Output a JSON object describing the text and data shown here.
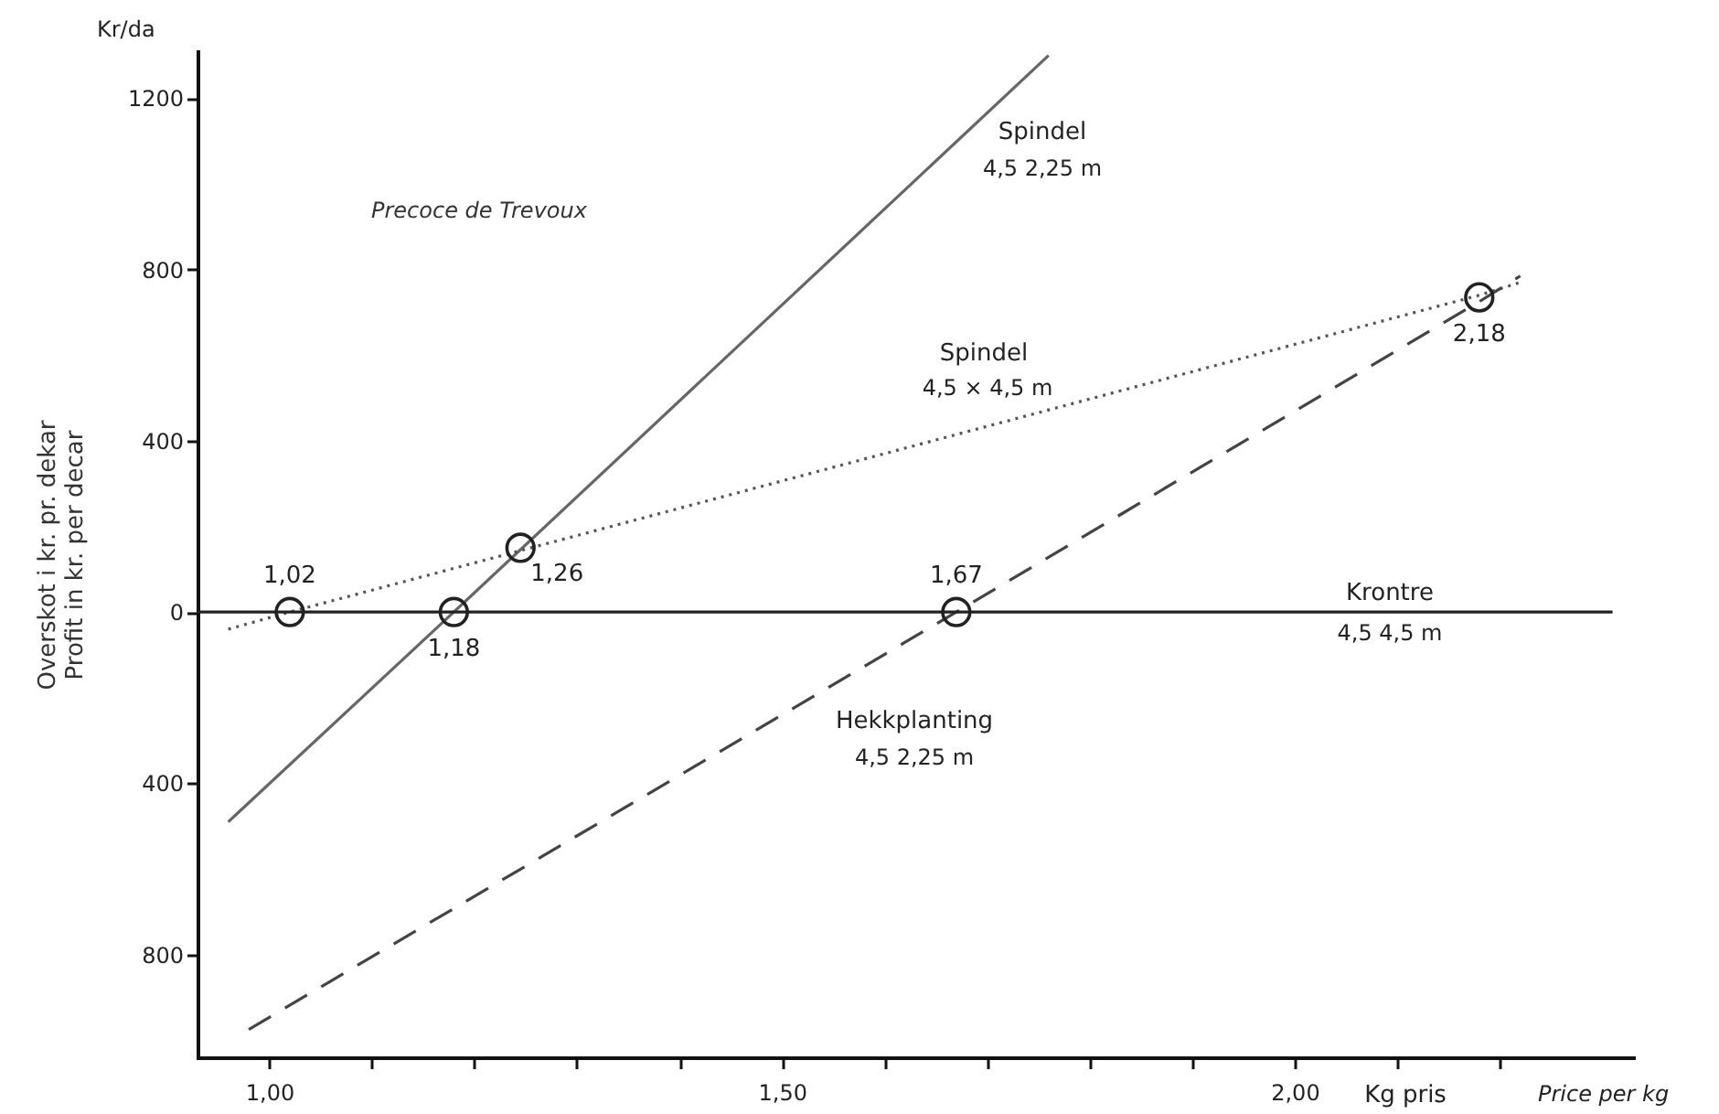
{
  "chart_data": {
    "type": "line",
    "title": "Precoce de Trevoux",
    "xlabel": "Kg pris",
    "ylabel": "Overskot i kr. pr. dekar\nProfit in kr. per decar",
    "xlim": [
      0.93,
      2.33
    ],
    "ylim": [
      -1040,
      1310
    ],
    "xticks": [
      {
        "value": 1.0,
        "label": "1,00"
      },
      {
        "value": 1.1,
        "label": null
      },
      {
        "value": 1.2,
        "label": null
      },
      {
        "value": 1.3,
        "label": null
      },
      {
        "value": 1.4,
        "label": null
      },
      {
        "value": 1.5,
        "label": "1,50"
      },
      {
        "value": 1.6,
        "label": null
      },
      {
        "value": 1.7,
        "label": null
      },
      {
        "value": 1.8,
        "label": null
      },
      {
        "value": 1.9,
        "label": null
      },
      {
        "value": 2.0,
        "label": "2,00"
      },
      {
        "value": 2.1,
        "label": null
      },
      {
        "value": 2.2,
        "label": null
      }
    ],
    "yticks": [
      {
        "value": -800,
        "label": "800"
      },
      {
        "value": -400,
        "label": "400"
      },
      0,
      400,
      800,
      1200
    ],
    "grid": false,
    "series": [
      {
        "name": "Spindel",
        "color": "#666666",
        "line_style": "solid",
        "marker": "none",
        "x": [
          0.96,
          1.18,
          1.76
        ],
        "values": [
          -490,
          0,
          1300
        ]
      },
      {
        "name": "Spindel",
        "color": "#555555",
        "line_style": "dotted",
        "marker": "none",
        "x": [
          0.96,
          1.02,
          2.18,
          2.22
        ],
        "values": [
          -40,
          0,
          740,
          770
        ]
      },
      {
        "name": "Hekkplanting",
        "color": "#444444",
        "line_style": "dashed",
        "marker": "none",
        "x": [
          0.98,
          1.67,
          2.18,
          2.22
        ],
        "values": [
          -975,
          0,
          725,
          785
        ]
      },
      {
        "name": "Krontre",
        "color": "#222222",
        "line_style": "solid",
        "marker": "none",
        "x": [
          0.93,
          2.31
        ],
        "values": [
          0,
          0
        ]
      },
      {
        "type": "scatter",
        "color": "#222222",
        "marker": "circle",
        "x": [
          1.02,
          1.18,
          1.245,
          1.67,
          2.18
        ],
        "values": [
          0,
          0,
          150,
          0,
          735
        ]
      }
    ],
    "annotations": [
      {
        "text": "1,02",
        "x": 1.02,
        "y": 0
      },
      {
        "text": "1,18",
        "x": 1.18,
        "y": 0
      },
      {
        "text": "1,26",
        "x": 1.245,
        "y": 150
      },
      {
        "text": "1,67",
        "x": 1.67,
        "y": 0
      },
      {
        "text": "2,18",
        "x": 2.18,
        "y": 735
      },
      "4,5 2,25 m",
      "4,5 × 4,5 m",
      "4,5 2,25 m",
      "4,5 4,5 m",
      "Kr/da",
      "Price per kg"
    ]
  }
}
